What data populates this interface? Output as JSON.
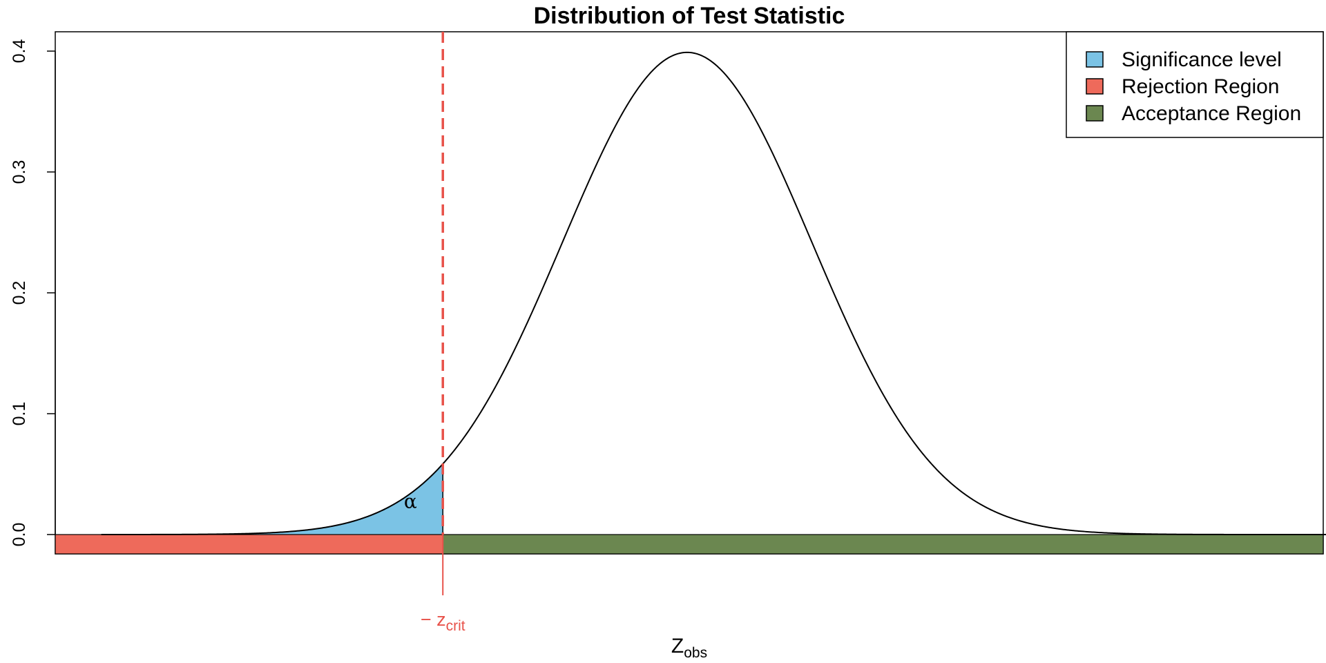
{
  "chart_data": {
    "type": "area",
    "title": "Distribution of Test Statistic",
    "xlabel_main": "Z",
    "xlabel_sub": "obs",
    "ylabel": "",
    "xlim": [
      -4.7,
      5.7
    ],
    "ylim": [
      0.0,
      0.4
    ],
    "y_ticks": [
      "0.0",
      "0.1",
      "0.2",
      "0.3",
      "0.4"
    ],
    "y_tick_values": [
      0.0,
      0.1,
      0.2,
      0.3,
      0.4
    ],
    "grid": false,
    "legend_position": "top-right",
    "curve": {
      "distribution": "standard normal density",
      "x_range": [
        -4.7,
        5.3
      ],
      "mean": 0,
      "peak": 0.399
    },
    "critical_value": {
      "x": -1.96,
      "label_prefix": "− z",
      "label_sub": "crit",
      "color": "#E8524A"
    },
    "shaded_tail": {
      "label": "α",
      "from": -4.7,
      "to": -1.96,
      "color": "#7BC3E5"
    },
    "regions": [
      {
        "name": "Rejection Region",
        "from": -5.1,
        "to": -1.96,
        "color": "#EE6A5B"
      },
      {
        "name": "Acceptance Region",
        "from": -1.96,
        "to": 5.7,
        "color": "#6B8750"
      }
    ],
    "legend": [
      {
        "label": "Significance level",
        "color": "#7BC3E5"
      },
      {
        "label": "Rejection Region",
        "color": "#EE6A5B"
      },
      {
        "label": "Acceptance Region",
        "color": "#6B8750"
      }
    ]
  }
}
